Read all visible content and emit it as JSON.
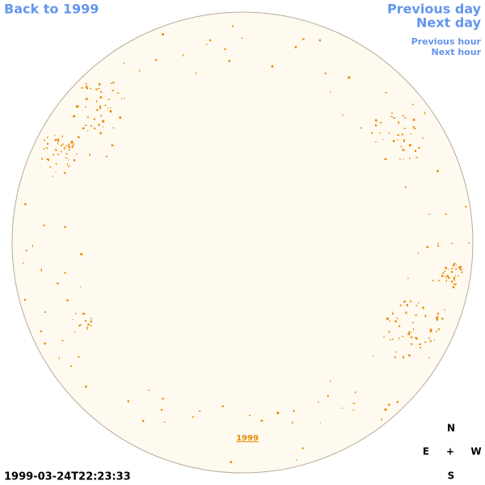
{
  "navigation": {
    "back": "Back to 1999",
    "previous_day": "Previous day",
    "next_day": "Next day",
    "previous_hour": "Previous hour",
    "next_hour": "Next hour"
  },
  "image": {
    "year_label": "1999",
    "timestamp": "1999-03-24T22:23:33"
  },
  "compass": {
    "north": "N",
    "east": "E",
    "center": "+",
    "west": "W",
    "south": "S"
  }
}
